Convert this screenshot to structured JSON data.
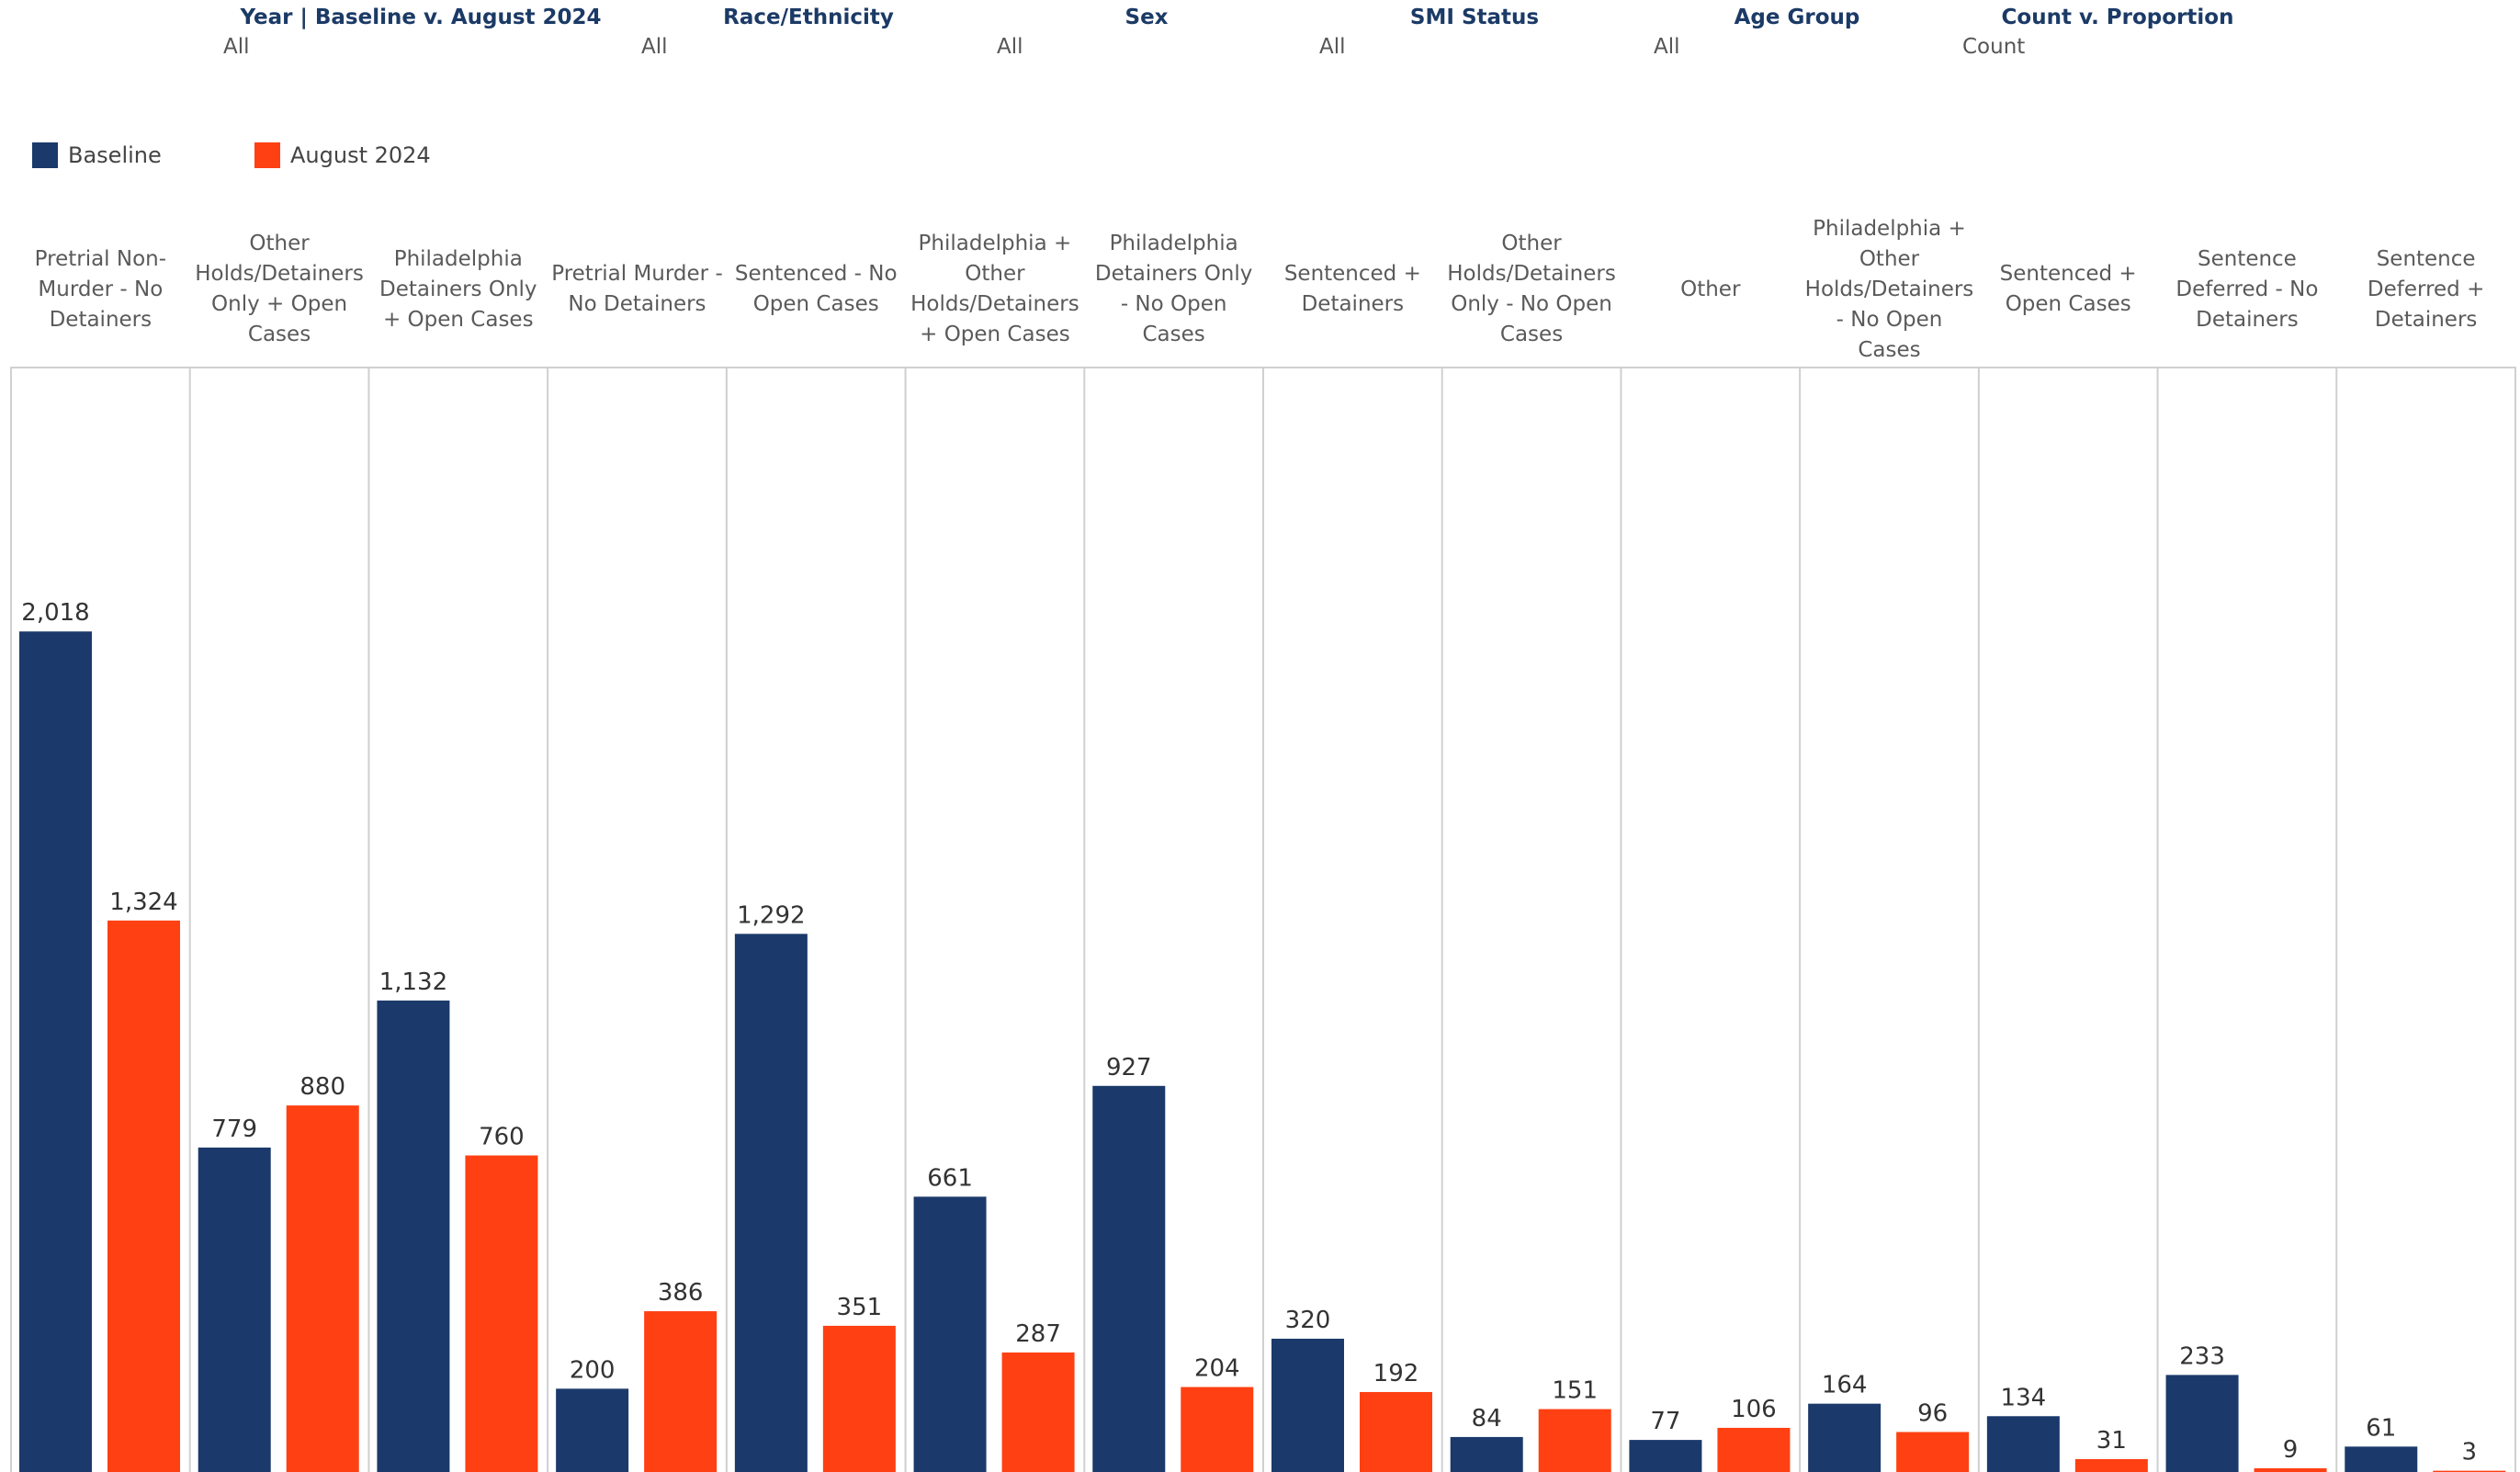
{
  "filters": [
    {
      "label": "Year | Baseline v. August 2024",
      "value": "All"
    },
    {
      "label": "Race/Ethnicity",
      "value": "All"
    },
    {
      "label": "Sex",
      "value": "All"
    },
    {
      "label": "SMI Status",
      "value": "All"
    },
    {
      "label": "Age Group",
      "value": "All"
    },
    {
      "label": "Count v. Proportion",
      "value": "Count"
    }
  ],
  "legend": [
    {
      "label": "Baseline",
      "color": "#1b3a6b"
    },
    {
      "label": "August 2024",
      "color": "#ff4013"
    }
  ],
  "chart_data": {
    "type": "bar",
    "categories": [
      "Pretrial Non-Murder - No Detainers",
      "Other Holds/Detainers Only + Open Cases",
      "Philadelphia Detainers Only + Open Cases",
      "Pretrial Murder - No Detainers",
      "Sentenced - No Open Cases",
      "Philadelphia + Other Holds/Detainers + Open Cases",
      "Philadelphia Detainers Only - No Open Cases",
      "Sentenced + Detainers",
      "Other Holds/Detainers Only - No Open Cases",
      "Other",
      "Philadelphia + Other Holds/Detainers - No Open Cases",
      "Sentenced + Open Cases",
      "Sentence Deferred - No Detainers",
      "Sentence Deferred + Detainers"
    ],
    "series": [
      {
        "name": "Baseline",
        "color": "#1b3a6b",
        "values": [
          2018,
          779,
          1132,
          200,
          1292,
          661,
          927,
          320,
          84,
          77,
          164,
          134,
          233,
          61
        ],
        "labels": [
          "2,018",
          "779",
          "1,132",
          "200",
          "1,292",
          "661",
          "927",
          "320",
          "84",
          "77",
          "164",
          "134",
          "233",
          "61"
        ]
      },
      {
        "name": "August 2024",
        "color": "#ff4013",
        "values": [
          1324,
          880,
          760,
          386,
          351,
          287,
          204,
          192,
          151,
          106,
          96,
          31,
          9,
          3
        ],
        "labels": [
          "1,324",
          "880",
          "760",
          "386",
          "351",
          "287",
          "204",
          "192",
          "151",
          "106",
          "96",
          "31",
          "9",
          "3"
        ]
      }
    ],
    "title": "",
    "xlabel": "",
    "ylabel": "",
    "ylim": [
      0,
      2400
    ],
    "legend_position": "top-left",
    "grid": false
  }
}
